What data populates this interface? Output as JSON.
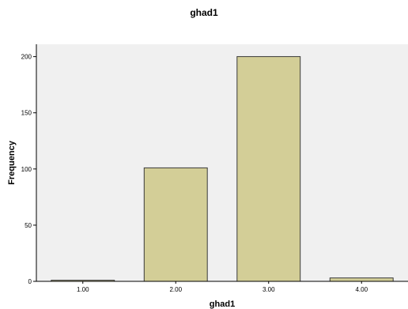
{
  "chart_data": {
    "type": "bar",
    "title": "ghad1",
    "xlabel": "ghad1",
    "ylabel": "Frequency",
    "categories": [
      "1.00",
      "2.00",
      "3.00",
      "4.00"
    ],
    "values": [
      1,
      101,
      200,
      3
    ],
    "ylim": [
      0,
      211
    ],
    "yticks": [
      0,
      50,
      100,
      150,
      200
    ],
    "grid": false,
    "colors": {
      "bar_fill": "#d3ce97",
      "bar_stroke": "#3a3a3a",
      "plot_background": "#f0f0f0",
      "axis": "#000000"
    }
  }
}
